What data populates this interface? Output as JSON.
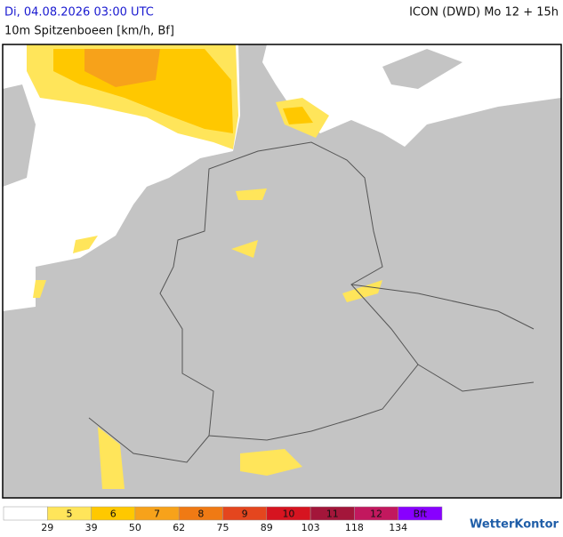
{
  "header": {
    "time": "Di, 04.08.2026 03:00 UTC",
    "model": "ICON (DWD) Mo 12 + 15h",
    "parameter": "10m Spitzenboeen [km/h, Bf]"
  },
  "legend": {
    "colors": [
      "#ffffff",
      "#ffe55a",
      "#ffc800",
      "#f7a21a",
      "#f07a14",
      "#e4461e",
      "#d61420",
      "#a3163a",
      "#c2185e",
      "#8800ff"
    ],
    "labels": [
      "5",
      "6",
      "7",
      "8",
      "9",
      "10",
      "11",
      "12",
      "Bft"
    ],
    "thresholds": [
      "29",
      "39",
      "50",
      "62",
      "75",
      "89",
      "103",
      "118",
      "134"
    ]
  },
  "logo": "WetterKontor"
}
